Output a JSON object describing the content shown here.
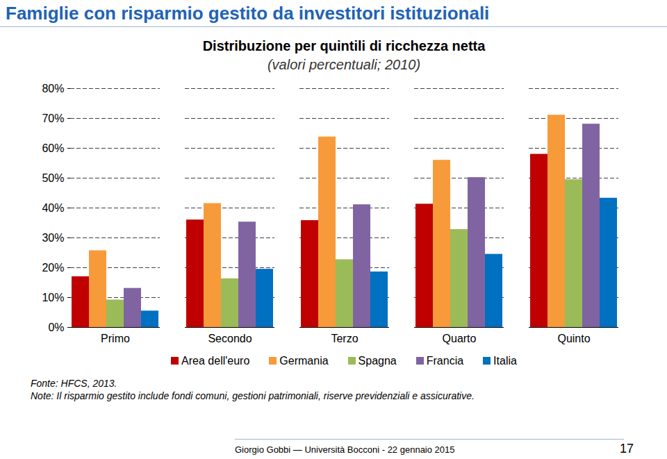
{
  "chart_data": {
    "type": "bar",
    "title": "Famiglie con risparmio gestito da investitori istituzionali",
    "subtitle": [
      "Distribuzione per quintili di ricchezza netta",
      "(valori percentuali; 2010)"
    ],
    "categories": [
      "Primo",
      "Secondo",
      "Terzo",
      "Quarto",
      "Quinto"
    ],
    "series": [
      {
        "name": "Area dell'euro",
        "color": "#c00000",
        "values": [
          17.0,
          36.0,
          35.8,
          41.3,
          58.0
        ]
      },
      {
        "name": "Germania",
        "color": "#f79a3a",
        "values": [
          25.7,
          41.5,
          63.8,
          56.0,
          71.1
        ]
      },
      {
        "name": "Spagna",
        "color": "#9bbb59",
        "values": [
          9.2,
          16.3,
          22.7,
          32.8,
          49.5
        ]
      },
      {
        "name": "Francia",
        "color": "#8064a2",
        "values": [
          13.1,
          35.3,
          41.1,
          50.2,
          68.1
        ]
      },
      {
        "name": "Italia",
        "color": "#0070c0",
        "values": [
          5.5,
          19.5,
          18.6,
          24.5,
          43.3
        ]
      }
    ],
    "ylim": [
      0,
      80
    ],
    "yticks": [
      {
        "value": 0,
        "label": "0%"
      },
      {
        "value": 10,
        "label": "10%"
      },
      {
        "value": 20,
        "label": "20%"
      },
      {
        "value": 30,
        "label": "30%"
      },
      {
        "value": 40,
        "label": "40%"
      },
      {
        "value": 50,
        "label": "50%"
      },
      {
        "value": 60,
        "label": "60%"
      },
      {
        "value": 70,
        "label": "70%"
      },
      {
        "value": 80,
        "label": "80%"
      }
    ],
    "grid": true,
    "legend": "bottom",
    "annotations": [
      "Fonte: HFCS, 2013.",
      "Note: Il risparmio gestito include fondi comuni, gestioni patrimoniali, riserve previdenziali e assicurative."
    ]
  },
  "footer": {
    "author": "Giorgio Gobbi — Università Bocconi - 22 gennaio 2015",
    "page": 17
  }
}
